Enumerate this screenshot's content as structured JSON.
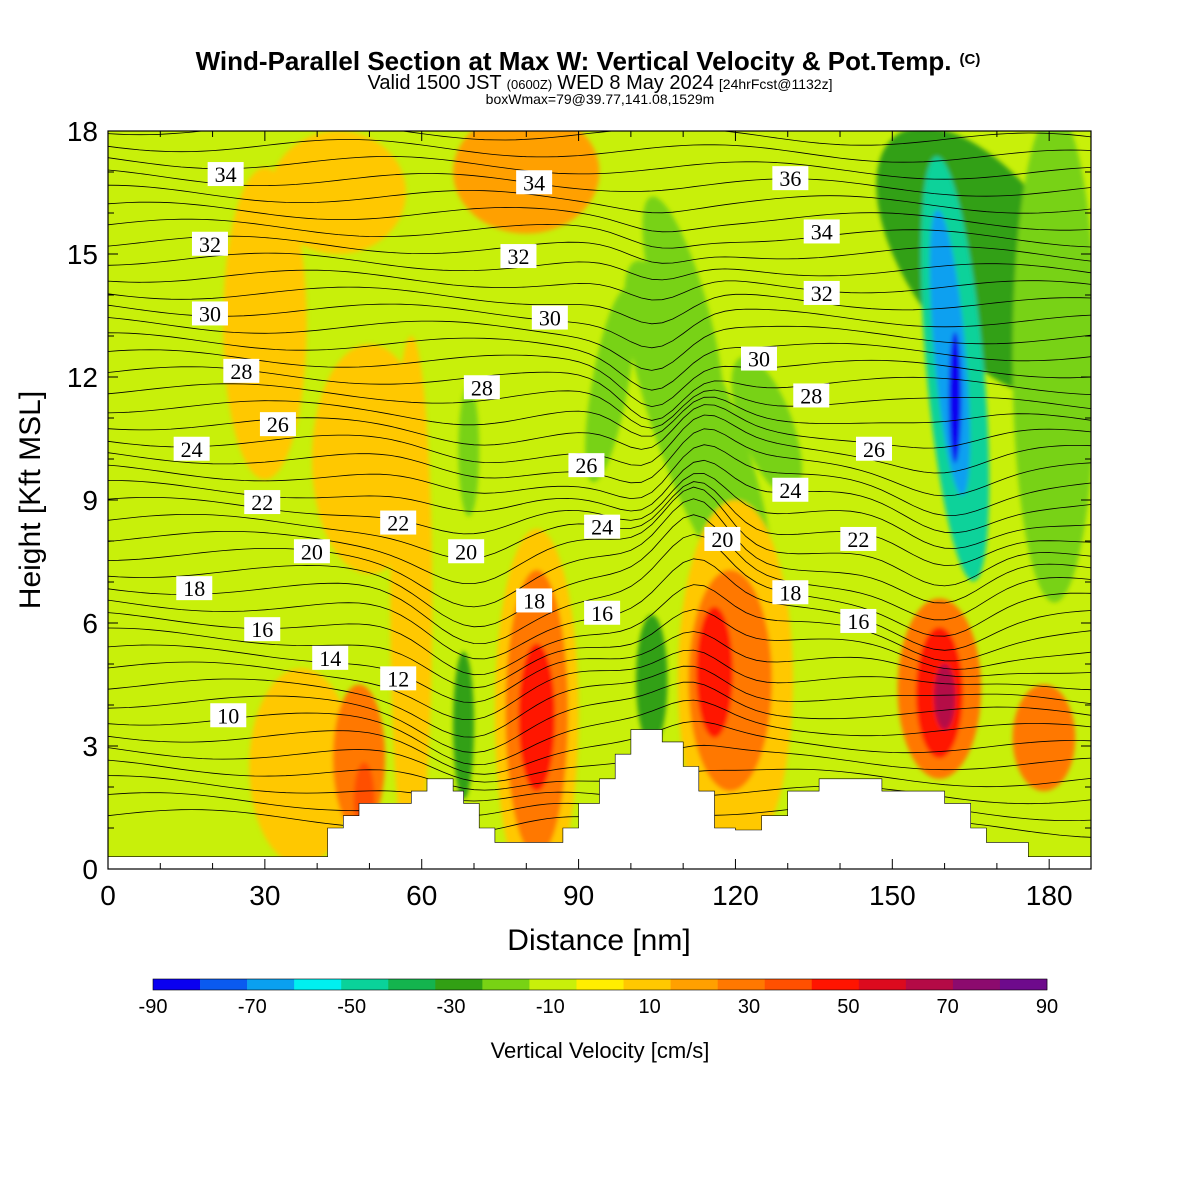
{
  "chart_data": {
    "type": "contour-cross-section",
    "title": "Wind-Parallel Section at Max W: Vertical Velocity & Pot.Temp.",
    "title_suffix": "(C)",
    "subtitle_parts": [
      "Valid 1500 JST",
      "(0600Z)",
      "WED 8 May 2024",
      "[24hrFcst@1132z]"
    ],
    "subtitle2": "boxWmax=79@39.77,141.08,1529m",
    "xlabel": "Distance [nm]",
    "ylabel": "Height [Kft MSL]",
    "xlim": [
      0,
      188
    ],
    "ylim": [
      0,
      18
    ],
    "x_ticks": [
      "0",
      "30",
      "60",
      "90",
      "120",
      "150",
      "180"
    ],
    "y_ticks": [
      "0",
      "3",
      "6",
      "9",
      "12",
      "15",
      "18"
    ],
    "colorbar": {
      "label": "Vertical Velocity [cm/s]",
      "tick_labels": [
        "-90",
        "-70",
        "-50",
        "-30",
        "-10",
        "10",
        "30",
        "50",
        "70",
        "90"
      ],
      "bounds": [
        -90,
        90
      ],
      "colors": [
        "#0a00f0",
        "#0a5af0",
        "#0aa0f0",
        "#00f0f0",
        "#0ad29a",
        "#14b44e",
        "#32a014",
        "#78d214",
        "#c8f00a",
        "#ffee00",
        "#ffc800",
        "#ffa000",
        "#ff7800",
        "#ff5000",
        "#ff1400",
        "#dc0a1e",
        "#b40a46",
        "#8c0a6e",
        "#6e0a8c"
      ]
    },
    "background_color": "#c8f00a",
    "contour_labels": [
      {
        "text": "34",
        "x": 22.5,
        "y": 16.95
      },
      {
        "text": "34",
        "x": 81.5,
        "y": 16.75
      },
      {
        "text": "36",
        "x": 130.5,
        "y": 16.85
      },
      {
        "text": "32",
        "x": 19.5,
        "y": 15.25
      },
      {
        "text": "32",
        "x": 78.5,
        "y": 14.95
      },
      {
        "text": "34",
        "x": 136.5,
        "y": 15.55
      },
      {
        "text": "30",
        "x": 19.5,
        "y": 13.55
      },
      {
        "text": "30",
        "x": 84.5,
        "y": 13.45
      },
      {
        "text": "32",
        "x": 136.5,
        "y": 14.05
      },
      {
        "text": "28",
        "x": 25.5,
        "y": 12.15
      },
      {
        "text": "30",
        "x": 124.5,
        "y": 12.45
      },
      {
        "text": "28",
        "x": 71.5,
        "y": 11.75
      },
      {
        "text": "28",
        "x": 134.5,
        "y": 11.55
      },
      {
        "text": "26",
        "x": 32.5,
        "y": 10.85
      },
      {
        "text": "26",
        "x": 91.5,
        "y": 9.85
      },
      {
        "text": "26",
        "x": 146.5,
        "y": 10.25
      },
      {
        "text": "24",
        "x": 16.0,
        "y": 10.25
      },
      {
        "text": "24",
        "x": 130.5,
        "y": 9.25
      },
      {
        "text": "22",
        "x": 29.5,
        "y": 8.95
      },
      {
        "text": "22",
        "x": 55.5,
        "y": 8.45
      },
      {
        "text": "24",
        "x": 94.5,
        "y": 8.35
      },
      {
        "text": "20",
        "x": 39.0,
        "y": 7.75
      },
      {
        "text": "20",
        "x": 68.5,
        "y": 7.75
      },
      {
        "text": "20",
        "x": 117.5,
        "y": 8.05
      },
      {
        "text": "22",
        "x": 143.5,
        "y": 8.05
      },
      {
        "text": "18",
        "x": 16.5,
        "y": 6.85
      },
      {
        "text": "18",
        "x": 81.5,
        "y": 6.55
      },
      {
        "text": "18",
        "x": 130.5,
        "y": 6.75
      },
      {
        "text": "16",
        "x": 29.5,
        "y": 5.85
      },
      {
        "text": "16",
        "x": 94.5,
        "y": 6.25
      },
      {
        "text": "16",
        "x": 143.5,
        "y": 6.05
      },
      {
        "text": "14",
        "x": 42.5,
        "y": 5.15
      },
      {
        "text": "12",
        "x": 55.5,
        "y": 4.65
      },
      {
        "text": "10",
        "x": 23.0,
        "y": 3.75
      }
    ],
    "terrain": [
      [
        0,
        0.3
      ],
      [
        42,
        0.3
      ],
      [
        42,
        1.0
      ],
      [
        45,
        1.0
      ],
      [
        45,
        1.3
      ],
      [
        48,
        1.3
      ],
      [
        48,
        1.6
      ],
      [
        58,
        1.6
      ],
      [
        58,
        1.9
      ],
      [
        61,
        1.9
      ],
      [
        61,
        2.2
      ],
      [
        66,
        2.2
      ],
      [
        66,
        1.9
      ],
      [
        68,
        1.9
      ],
      [
        68,
        1.6
      ],
      [
        71,
        1.6
      ],
      [
        71,
        1.0
      ],
      [
        74,
        1.0
      ],
      [
        74,
        0.65
      ],
      [
        87,
        0.65
      ],
      [
        87,
        1.0
      ],
      [
        90,
        1.0
      ],
      [
        90,
        1.6
      ],
      [
        94,
        1.6
      ],
      [
        94,
        2.2
      ],
      [
        97,
        2.2
      ],
      [
        97,
        2.8
      ],
      [
        100,
        2.8
      ],
      [
        100,
        3.4
      ],
      [
        106,
        3.4
      ],
      [
        106,
        3.1
      ],
      [
        110,
        3.1
      ],
      [
        110,
        2.5
      ],
      [
        113,
        2.5
      ],
      [
        113,
        1.9
      ],
      [
        116,
        1.9
      ],
      [
        116,
        1.0
      ],
      [
        120,
        1.0
      ],
      [
        120,
        0.95
      ],
      [
        125,
        0.95
      ],
      [
        125,
        1.3
      ],
      [
        130,
        1.3
      ],
      [
        130,
        1.9
      ],
      [
        136,
        1.9
      ],
      [
        136,
        2.2
      ],
      [
        148,
        2.2
      ],
      [
        148,
        1.9
      ],
      [
        160,
        1.9
      ],
      [
        160,
        1.6
      ],
      [
        165,
        1.6
      ],
      [
        165,
        1.0
      ],
      [
        168,
        1.0
      ],
      [
        168,
        0.65
      ],
      [
        176,
        0.65
      ],
      [
        176,
        0.3
      ],
      [
        188,
        0.3
      ]
    ],
    "w_blobs": [
      {
        "cx": 113,
        "cy": 10.6,
        "rx": 8,
        "ry": 4.5,
        "rot": -20,
        "w": -20
      },
      {
        "cx": 110,
        "cy": 13.5,
        "rx": 5,
        "ry": 3,
        "rot": -15,
        "w": -20
      },
      {
        "cx": 96,
        "cy": 11.8,
        "rx": 3.5,
        "ry": 2.4,
        "rot": 10,
        "w": -15
      },
      {
        "cx": 69,
        "cy": 10.2,
        "rx": 2,
        "ry": 1.6,
        "rot": 0,
        "w": -15
      },
      {
        "cx": 126,
        "cy": 10.8,
        "rx": 5,
        "ry": 1.8,
        "rot": -20,
        "w": -15
      },
      {
        "cx": 168,
        "cy": 14.8,
        "rx": 15,
        "ry": 3.8,
        "rot": -35,
        "w": -25
      },
      {
        "cx": 162,
        "cy": 12.2,
        "rx": 5.5,
        "ry": 5.2,
        "rot": -5,
        "w": -50
      },
      {
        "cx": 161,
        "cy": 12.6,
        "rx": 3,
        "ry": 3.5,
        "rot": -5,
        "w": -70
      },
      {
        "cx": 162,
        "cy": 11.5,
        "rx": 1.2,
        "ry": 1.6,
        "rot": 0,
        "w": -85
      },
      {
        "cx": 181,
        "cy": 12.5,
        "rx": 8,
        "ry": 6,
        "rot": 0,
        "w": -15
      },
      {
        "cx": 104,
        "cy": 4.6,
        "rx": 3,
        "ry": 1.6,
        "rot": 0,
        "w": -25
      },
      {
        "cx": 68,
        "cy": 3.5,
        "rx": 2,
        "ry": 1.8,
        "rot": 0,
        "w": -30
      },
      {
        "cx": 30,
        "cy": 13.3,
        "rx": 8,
        "ry": 3.8,
        "rot": 0,
        "w": 12
      },
      {
        "cx": 44,
        "cy": 16.5,
        "rx": 13,
        "ry": 1.5,
        "rot": 0,
        "w": 12
      },
      {
        "cx": 80,
        "cy": 17.0,
        "rx": 14,
        "ry": 1.5,
        "rot": 0,
        "w": 20
      },
      {
        "cx": 50,
        "cy": 10.0,
        "rx": 11,
        "ry": 2.8,
        "rot": 0,
        "w": 12
      },
      {
        "cx": 58,
        "cy": 6.5,
        "rx": 4,
        "ry": 6.5,
        "rot": 0,
        "w": 12
      },
      {
        "cx": 37,
        "cy": 2.5,
        "rx": 10,
        "ry": 2.4,
        "rot": 0,
        "w": 12
      },
      {
        "cx": 48,
        "cy": 2.7,
        "rx": 5,
        "ry": 1.8,
        "rot": 0,
        "w": 28
      },
      {
        "cx": 49,
        "cy": 1.7,
        "rx": 2,
        "ry": 0.9,
        "rot": 0,
        "w": 38
      },
      {
        "cx": 82,
        "cy": 3.8,
        "rx": 8,
        "ry": 4.5,
        "rot": 0,
        "w": 12
      },
      {
        "cx": 82,
        "cy": 3.8,
        "rx": 6,
        "ry": 3.5,
        "rot": 0,
        "w": 28
      },
      {
        "cx": 82,
        "cy": 3.7,
        "rx": 3.5,
        "ry": 1.8,
        "rot": 0,
        "w": 48
      },
      {
        "cx": 120,
        "cy": 4.6,
        "rx": 11,
        "ry": 4.4,
        "rot": 0,
        "w": 12
      },
      {
        "cx": 119,
        "cy": 4.6,
        "rx": 8,
        "ry": 2.7,
        "rot": 0,
        "w": 28
      },
      {
        "cx": 116,
        "cy": 4.8,
        "rx": 3.5,
        "ry": 1.6,
        "rot": 0,
        "w": 48
      },
      {
        "cx": 159,
        "cy": 4.4,
        "rx": 8,
        "ry": 2.2,
        "rot": 0,
        "w": 28
      },
      {
        "cx": 159,
        "cy": 4.3,
        "rx": 4.5,
        "ry": 1.6,
        "rot": 0,
        "w": 48
      },
      {
        "cx": 160,
        "cy": 4.2,
        "rx": 2,
        "ry": 0.8,
        "rot": 0,
        "w": 65
      },
      {
        "cx": 179,
        "cy": 3.2,
        "rx": 6,
        "ry": 1.3,
        "rot": 0,
        "w": 25
      }
    ]
  }
}
